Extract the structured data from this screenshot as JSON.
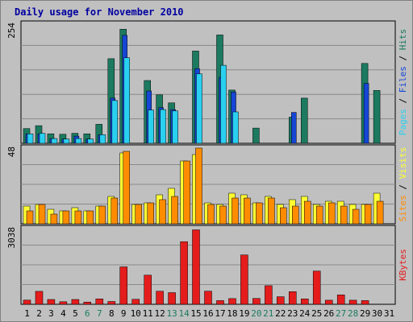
{
  "chart_data": {
    "type": "bar",
    "title": "Daily usage for November 2010",
    "categories": [
      "1",
      "2",
      "3",
      "4",
      "5",
      "6",
      "7",
      "8",
      "9",
      "10",
      "11",
      "12",
      "13",
      "14",
      "15",
      "16",
      "17",
      "18",
      "19",
      "20",
      "21",
      "22",
      "23",
      "24",
      "25",
      "26",
      "27",
      "28",
      "29",
      "30",
      "31"
    ],
    "weekend_days": [
      "6",
      "7",
      "13",
      "14",
      "20",
      "21",
      "27",
      "28"
    ],
    "panels": [
      {
        "id": "hits-files-pages",
        "ymax_label": "254",
        "ylim": [
          0,
          254
        ],
        "right_labels": [
          "Pages",
          "Files",
          "Hits"
        ],
        "series": [
          {
            "name": "Hits",
            "color": "#1b7a5f",
            "values": [
              31,
              37,
              20,
              19,
              21,
              20,
              40,
              178,
              240,
              0,
              132,
              102,
              85,
              0,
              194,
              0,
              228,
              112,
              0,
              32,
              0,
              0,
              55,
              95,
              0,
              0,
              0,
              0,
              168,
              111,
              0
            ]
          },
          {
            "name": "Files",
            "color": "#1646d6",
            "values": [
              20,
              20,
              10,
              9,
              15,
              9,
              18,
              95,
              227,
              0,
              110,
              75,
              71,
              0,
              157,
              0,
              139,
              108,
              0,
              0,
              0,
              0,
              65,
              0,
              0,
              0,
              0,
              0,
              126,
              0,
              0
            ]
          },
          {
            "name": "Pages",
            "color": "#29d0f0",
            "values": [
              20,
              21,
              10,
              9,
              10,
              9,
              18,
              90,
              180,
              0,
              70,
              71,
              68,
              0,
              146,
              0,
              164,
              66,
              0,
              0,
              0,
              0,
              0,
              0,
              0,
              0,
              0,
              0,
              0,
              0,
              0
            ]
          }
        ]
      },
      {
        "id": "visits-sites",
        "ymax_label": "48",
        "ylim": [
          0,
          48
        ],
        "right_labels": [
          "Sites",
          "Visits"
        ],
        "series": [
          {
            "name": "Visits",
            "color": "#ffff33",
            "values": [
              11,
              12,
              9,
              8,
              10,
              8,
              11,
              17,
              44,
              12,
              13,
              18,
              22,
              39,
              43,
              13,
              12,
              19,
              18,
              13,
              17,
              12,
              15,
              17,
              12,
              14,
              14,
              12,
              12,
              19,
              0
            ]
          },
          {
            "name": "Sites",
            "color": "#ff8c00",
            "values": [
              8,
              12,
              6,
              8,
              8,
              8,
              11,
              16,
              45,
              12,
              13,
              15,
              17,
              39,
              47,
              12,
              11,
              16,
              16,
              13,
              16,
              10,
              11,
              14,
              11,
              13,
              11,
              9,
              12,
              14,
              0
            ]
          }
        ]
      },
      {
        "id": "kbytes",
        "ymax_label": "3038",
        "ylim": [
          0,
          3038
        ],
        "right_labels": [
          "KBytes"
        ],
        "series": [
          {
            "name": "KBytes",
            "color": "#e51c1c",
            "values": [
              163,
              510,
              189,
              100,
              190,
              90,
              212,
              112,
              1473,
              195,
              1146,
              512,
              460,
              2463,
              2928,
              515,
              145,
              226,
              1941,
              231,
              730,
              298,
              498,
              211,
              1308,
              162,
              371,
              162,
              147,
              0,
              0
            ]
          }
        ]
      }
    ]
  }
}
